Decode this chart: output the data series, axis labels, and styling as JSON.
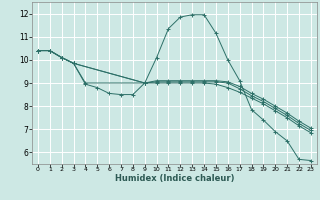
{
  "xlabel": "Humidex (Indice chaleur)",
  "bg_color": "#cde8e4",
  "grid_color": "#ffffff",
  "line_color": "#2d7068",
  "xlim": [
    -0.5,
    23.5
  ],
  "ylim": [
    5.5,
    12.5
  ],
  "xticks": [
    0,
    1,
    2,
    3,
    4,
    5,
    6,
    7,
    8,
    9,
    10,
    11,
    12,
    13,
    14,
    15,
    16,
    17,
    18,
    19,
    20,
    21,
    22,
    23
  ],
  "yticks": [
    6,
    7,
    8,
    9,
    10,
    11,
    12
  ],
  "line1_x": [
    0,
    1,
    2,
    3,
    4,
    5,
    6,
    7,
    8,
    9,
    10,
    11,
    12,
    13,
    14,
    15,
    16,
    17,
    18,
    19,
    20,
    21,
    22,
    23
  ],
  "line1_y": [
    10.4,
    10.4,
    10.1,
    9.85,
    8.95,
    8.8,
    8.55,
    8.5,
    8.5,
    9.0,
    10.1,
    11.35,
    11.85,
    11.95,
    11.95,
    11.15,
    10.0,
    9.1,
    7.85,
    7.4,
    6.9,
    6.5,
    5.7,
    5.65
  ],
  "line2_x": [
    0,
    1,
    2,
    3,
    4,
    9,
    10,
    11,
    12,
    13,
    14,
    15,
    16,
    17,
    18,
    19,
    20,
    21,
    22,
    23
  ],
  "line2_y": [
    10.4,
    10.4,
    10.1,
    9.85,
    9.0,
    9.0,
    9.0,
    9.0,
    9.0,
    9.0,
    9.0,
    8.95,
    8.8,
    8.6,
    8.35,
    8.1,
    7.8,
    7.5,
    7.15,
    6.85
  ],
  "line3_x": [
    0,
    1,
    2,
    3,
    9,
    10,
    11,
    12,
    13,
    14,
    15,
    16,
    17,
    18,
    19,
    20,
    21,
    22,
    23
  ],
  "line3_y": [
    10.4,
    10.4,
    10.1,
    9.85,
    9.0,
    9.05,
    9.05,
    9.05,
    9.05,
    9.05,
    9.05,
    9.0,
    8.75,
    8.45,
    8.2,
    7.9,
    7.6,
    7.25,
    6.95
  ],
  "line4_x": [
    0,
    1,
    2,
    3,
    9,
    10,
    11,
    12,
    13,
    14,
    15,
    16,
    17,
    18,
    19,
    20,
    21,
    22,
    23
  ],
  "line4_y": [
    10.4,
    10.4,
    10.1,
    9.85,
    9.0,
    9.1,
    9.1,
    9.1,
    9.1,
    9.1,
    9.1,
    9.05,
    8.85,
    8.55,
    8.3,
    8.0,
    7.7,
    7.35,
    7.05
  ]
}
